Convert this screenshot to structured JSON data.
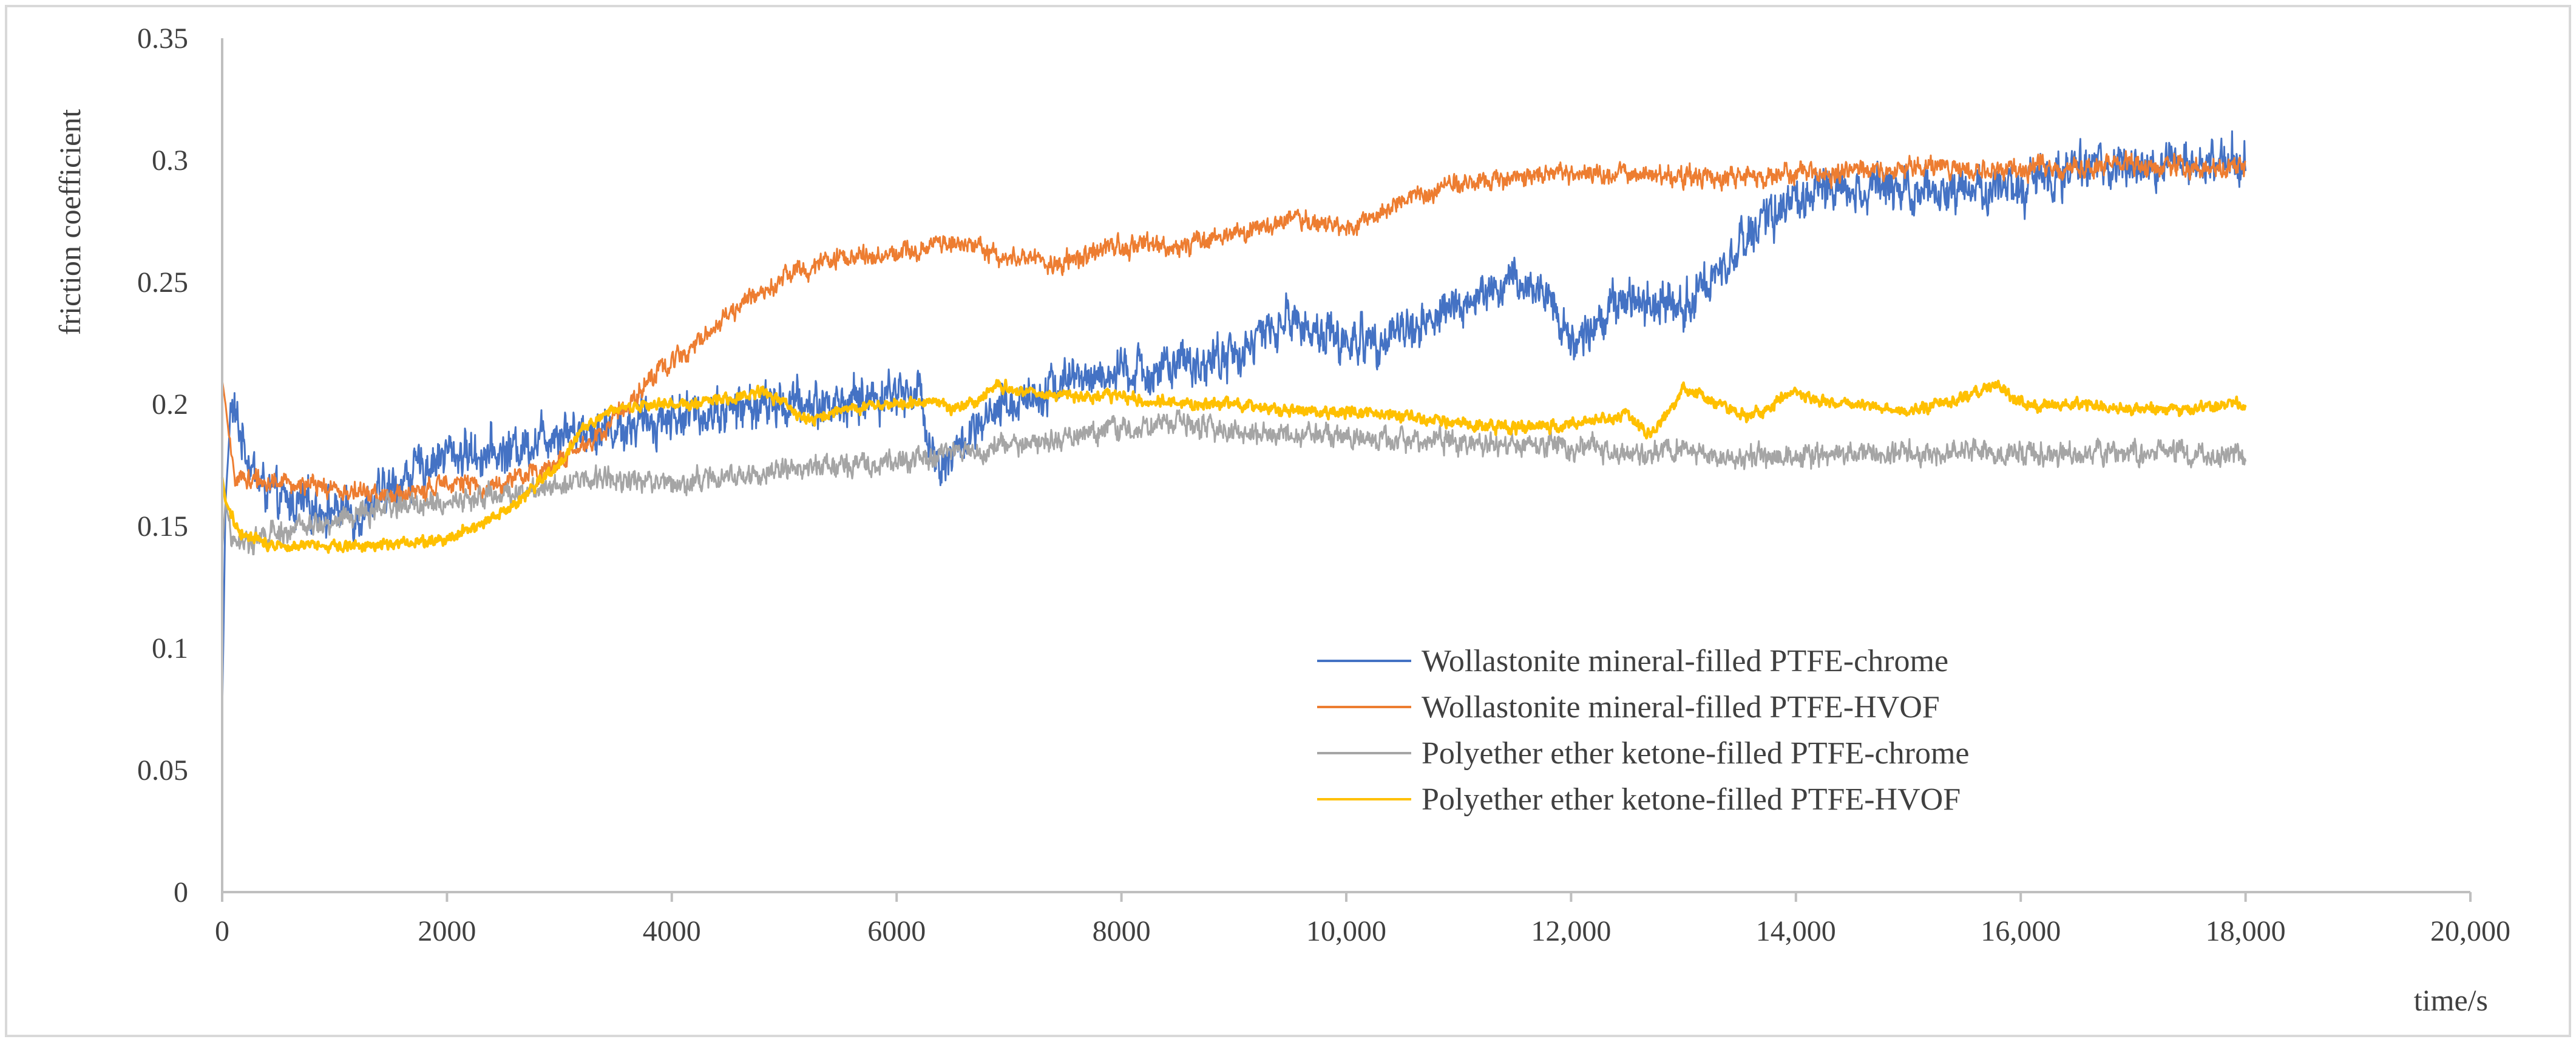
{
  "colors": {
    "background": "#ffffff",
    "frame": "#d9d9d9",
    "axis": "#bfbfbf",
    "text": "#404040"
  },
  "chart_data": {
    "type": "line",
    "title": "",
    "xlabel": "time/s",
    "ylabel": "friction coefficient",
    "xlim": [
      0,
      20000
    ],
    "ylim": [
      0,
      0.35
    ],
    "grid": false,
    "legend_position": "center-right inside plot",
    "x_ticks": [
      0,
      2000,
      4000,
      6000,
      8000,
      10000,
      12000,
      14000,
      16000,
      18000,
      20000
    ],
    "x_tick_labels": [
      "0",
      "2000",
      "4000",
      "6000",
      "8000",
      "10,000",
      "12,000",
      "14,000",
      "16,000",
      "18,000",
      "20,000"
    ],
    "y_ticks": [
      0,
      0.05,
      0.1,
      0.15,
      0.2,
      0.25,
      0.3,
      0.35
    ],
    "y_tick_labels": [
      "0",
      "0.05",
      "0.1",
      "0.15",
      "0.2",
      "0.25",
      "0.3",
      "0.35"
    ],
    "series": [
      {
        "name": "Wollastonite mineral-filled PTFE-chrome",
        "color": "#4472C4",
        "noise": 0.009,
        "x": [
          0,
          30,
          80,
          150,
          300,
          500,
          800,
          1200,
          1500,
          1800,
          2000,
          2500,
          3000,
          3500,
          4000,
          4500,
          5000,
          5500,
          6000,
          6200,
          6350,
          6500,
          7000,
          7500,
          8000,
          8500,
          9000,
          9500,
          10000,
          10500,
          11000,
          11500,
          11800,
          12000,
          12500,
          13000,
          13500,
          14000,
          14500,
          15000,
          15500,
          16000,
          16500,
          17000,
          17500,
          18000
        ],
        "values": [
          0.072,
          0.16,
          0.2,
          0.19,
          0.17,
          0.16,
          0.158,
          0.155,
          0.165,
          0.175,
          0.18,
          0.18,
          0.19,
          0.19,
          0.195,
          0.198,
          0.2,
          0.2,
          0.205,
          0.205,
          0.175,
          0.18,
          0.2,
          0.21,
          0.212,
          0.215,
          0.22,
          0.235,
          0.225,
          0.23,
          0.24,
          0.25,
          0.245,
          0.225,
          0.245,
          0.24,
          0.265,
          0.285,
          0.29,
          0.29,
          0.288,
          0.29,
          0.295,
          0.298,
          0.298,
          0.3
        ]
      },
      {
        "name": "Wollastonite mineral-filled PTFE-HVOF",
        "color": "#ED7D31",
        "noise": 0.004,
        "x": [
          0,
          30,
          100,
          500,
          1000,
          1500,
          1900,
          2000,
          2300,
          2800,
          3300,
          3800,
          4200,
          4600,
          5000,
          5500,
          6000,
          6500,
          7000,
          7500,
          8000,
          8500,
          9000,
          9500,
          10000,
          10500,
          11000,
          11500,
          12000,
          13000,
          14000,
          15000,
          16000,
          17000,
          18000
        ],
        "values": [
          0.21,
          0.2,
          0.17,
          0.168,
          0.165,
          0.162,
          0.165,
          0.17,
          0.165,
          0.172,
          0.185,
          0.21,
          0.225,
          0.24,
          0.253,
          0.26,
          0.262,
          0.267,
          0.26,
          0.258,
          0.265,
          0.265,
          0.27,
          0.275,
          0.272,
          0.283,
          0.29,
          0.293,
          0.295,
          0.293,
          0.294,
          0.297,
          0.296,
          0.298,
          0.297
        ]
      },
      {
        "name": "Polyether ether ketone-filled PTFE-chrome",
        "color": "#A5A5A5",
        "noise": 0.0045,
        "x": [
          0,
          30,
          100,
          300,
          600,
          1000,
          1500,
          2000,
          2500,
          3000,
          3500,
          4000,
          4500,
          5000,
          5500,
          6000,
          6500,
          7000,
          7500,
          8000,
          8500,
          9000,
          9500,
          10000,
          10500,
          11000,
          11500,
          12000,
          12500,
          13000,
          13500,
          14000,
          14500,
          15000,
          15500,
          16000,
          16500,
          17000,
          17500,
          18000
        ],
        "values": [
          0.14,
          0.16,
          0.142,
          0.145,
          0.148,
          0.152,
          0.158,
          0.16,
          0.163,
          0.168,
          0.17,
          0.168,
          0.17,
          0.173,
          0.175,
          0.177,
          0.18,
          0.183,
          0.186,
          0.19,
          0.193,
          0.188,
          0.187,
          0.186,
          0.185,
          0.184,
          0.183,
          0.183,
          0.18,
          0.18,
          0.178,
          0.178,
          0.18,
          0.18,
          0.18,
          0.18,
          0.18,
          0.18,
          0.18,
          0.178
        ]
      },
      {
        "name": "Polyether ether ketone-filled PTFE-HVOF",
        "color": "#FFC000",
        "noise": 0.0022,
        "x": [
          0,
          30,
          150,
          400,
          800,
          1200,
          1600,
          2000,
          2500,
          3000,
          3200,
          3500,
          3800,
          4200,
          4600,
          4800,
          5000,
          5200,
          5600,
          6000,
          6300,
          6600,
          6900,
          7200,
          7600,
          8000,
          8500,
          9000,
          9500,
          10000,
          10500,
          11000,
          11500,
          12000,
          12500,
          12700,
          12900,
          13000,
          13300,
          13600,
          14000,
          14300,
          14600,
          15000,
          15500,
          15800,
          16000,
          16500,
          17000,
          17500,
          18000
        ],
        "values": [
          0.17,
          0.16,
          0.148,
          0.143,
          0.142,
          0.142,
          0.143,
          0.145,
          0.155,
          0.175,
          0.19,
          0.198,
          0.2,
          0.2,
          0.203,
          0.205,
          0.2,
          0.193,
          0.198,
          0.2,
          0.2,
          0.198,
          0.208,
          0.205,
          0.203,
          0.203,
          0.2,
          0.2,
          0.197,
          0.197,
          0.195,
          0.192,
          0.19,
          0.192,
          0.195,
          0.188,
          0.198,
          0.207,
          0.2,
          0.195,
          0.205,
          0.2,
          0.2,
          0.197,
          0.203,
          0.208,
          0.2,
          0.2,
          0.198,
          0.198,
          0.2
        ]
      }
    ]
  }
}
